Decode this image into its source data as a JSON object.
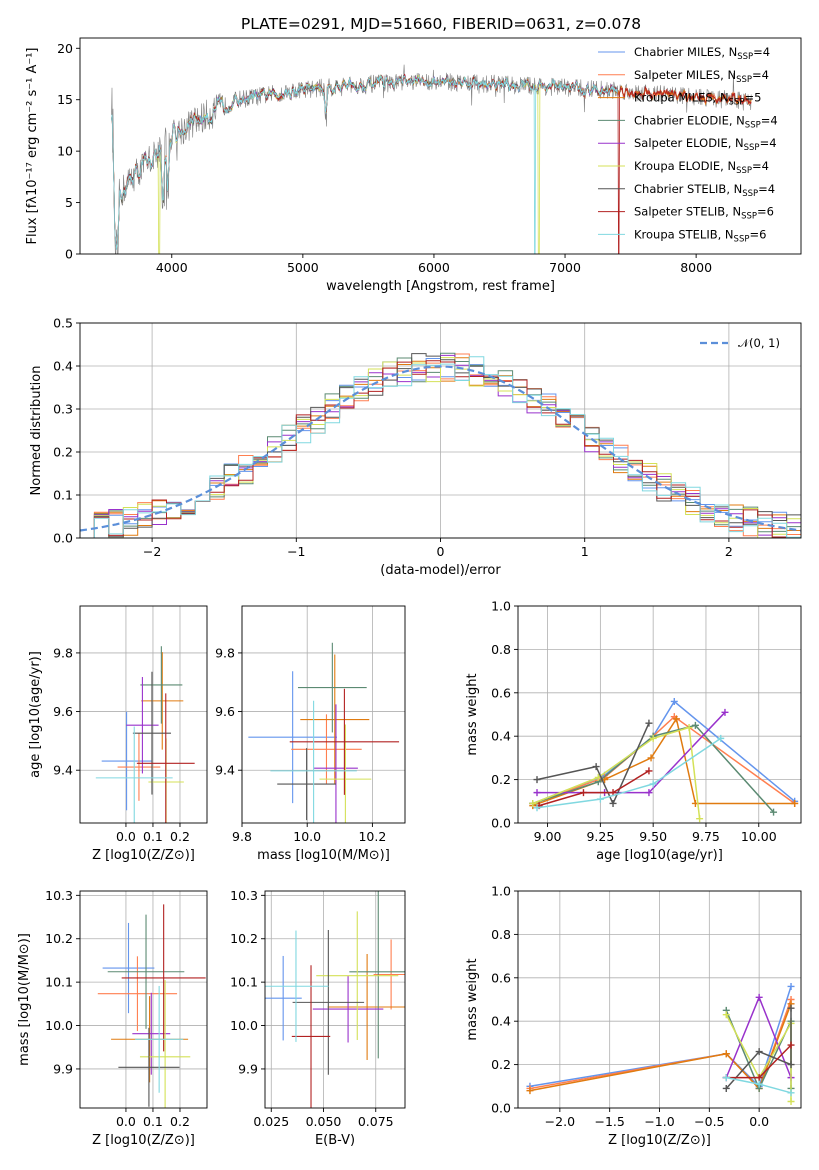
{
  "title": "PLATE=0291, MJD=51660, FIBERID=0631, z=0.078",
  "colors": {
    "Chabrier MILES": "#6495ed",
    "Salpeter MILES": "#ff7f50",
    "Kroupa MILES": "#e07b10",
    "Chabrier ELODIE": "#5b8a72",
    "Salpeter ELODIE": "#9932cc",
    "Kroupa ELODIE": "#d4e157",
    "Chabrier STELIB": "#555555",
    "Salpeter STELIB": "#b22222",
    "Kroupa STELIB": "#80d8e0"
  },
  "chart_data": [
    {
      "id": "spectrum",
      "type": "line",
      "xlabel": "wavelength [Angstrom, rest frame]",
      "ylabel": "Flux [fλ10⁻¹⁷ erg cm⁻² s⁻¹ A⁻¹]",
      "xlim": [
        3300,
        8800
      ],
      "ylim": [
        0,
        21
      ],
      "xticks": [
        "4000",
        "5000",
        "6000",
        "7000",
        "8000"
      ],
      "yticks": [
        "0",
        "5",
        "10",
        "15",
        "20"
      ],
      "legend": [
        "Chabrier MILES, N",
        "Salpeter MILES, N",
        "Kroupa MILES, N",
        "Chabrier ELODIE, N",
        "Salpeter ELODIE, N",
        "Kroupa ELODIE, N",
        "Chabrier STELIB, N",
        "Salpeter STELIB, N",
        "Kroupa STELIB, N"
      ],
      "legend_sub": [
        "SSP",
        "SSP",
        "SSP",
        "SSP",
        "SSP",
        "SSP",
        "SSP",
        "SSP",
        "SSP"
      ],
      "legend_n": [
        "=4",
        "=4",
        "=5",
        "=4",
        "=4",
        "=4",
        "=4",
        "=6",
        "=6"
      ],
      "legend_position": "right",
      "data_wavelength_range": [
        3540,
        8420
      ],
      "continuum_points": [
        [
          3560,
          5
        ],
        [
          3700,
          7.5
        ],
        [
          3900,
          10
        ],
        [
          4000,
          11.5
        ],
        [
          4200,
          13
        ],
        [
          4500,
          15
        ],
        [
          5000,
          16
        ],
        [
          5500,
          16.5
        ],
        [
          6000,
          16.8
        ],
        [
          6500,
          16.5
        ],
        [
          7000,
          16.2
        ],
        [
          7500,
          15.8
        ],
        [
          8000,
          15.3
        ],
        [
          8400,
          14.8
        ]
      ]
    },
    {
      "id": "residuals",
      "type": "line",
      "xlabel": "(data-model)/error",
      "ylabel": "Normed distribution",
      "xlim": [
        -2.5,
        2.5
      ],
      "ylim": [
        0,
        0.5
      ],
      "xticks": [
        "−2",
        "−1",
        "0",
        "1",
        "2"
      ],
      "yticks": [
        "0.0",
        "0.1",
        "0.2",
        "0.3",
        "0.4",
        "0.5"
      ],
      "legend": [
        "𝒩(0, 1)"
      ],
      "legend_position": "top-right",
      "reference": {
        "name": "𝒩(0, 1)",
        "mean": 0,
        "sigma": 1
      }
    },
    {
      "id": "age_vs_Z",
      "type": "scatter",
      "xlabel": "Z [log10(Z/Z⊙)]",
      "ylabel": "age  [log10(age/yr)]",
      "xlim": [
        -0.17,
        0.3
      ],
      "ylim": [
        9.22,
        9.96
      ],
      "xticks": [
        "0.0",
        "0.1",
        "0.2"
      ],
      "yticks": [
        "9.4",
        "9.6",
        "9.8"
      ]
    },
    {
      "id": "age_vs_mass",
      "type": "scatter",
      "xlabel": "mass [log10(M/M⊙)]",
      "ylabel": "",
      "xlim": [
        9.8,
        10.3
      ],
      "ylim": [
        9.22,
        9.96
      ],
      "xticks": [
        "9.8",
        "10.0",
        "10.2"
      ],
      "yticks": [
        "9.4",
        "9.6",
        "9.8"
      ]
    },
    {
      "id": "weight_vs_age",
      "type": "line",
      "xlabel": "age  [log10(age/yr)]",
      "ylabel": "mass weight",
      "xlim": [
        8.86,
        10.2
      ],
      "ylim": [
        0,
        1.0
      ],
      "xticks": [
        "9.00",
        "9.25",
        "9.50",
        "9.75",
        "10.00"
      ],
      "yticks": [
        "0.0",
        "0.2",
        "0.4",
        "0.6",
        "0.8",
        "1.0"
      ],
      "series": [
        {
          "name": "Chabrier MILES",
          "x": [
            8.93,
            9.27,
            9.5,
            9.6,
            10.17
          ],
          "y": [
            0.09,
            0.22,
            0.4,
            0.56,
            0.1
          ]
        },
        {
          "name": "Salpeter MILES",
          "x": [
            8.93,
            9.27,
            9.5,
            9.6,
            10.17
          ],
          "y": [
            0.09,
            0.21,
            0.4,
            0.49,
            0.09
          ]
        },
        {
          "name": "Kroupa MILES",
          "x": [
            8.93,
            9.27,
            9.49,
            9.61,
            9.7,
            10.17
          ],
          "y": [
            0.08,
            0.2,
            0.3,
            0.48,
            0.09,
            0.09
          ]
        },
        {
          "name": "Chabrier ELODIE",
          "x": [
            8.93,
            9.24,
            9.5,
            9.7,
            10.07
          ],
          "y": [
            0.09,
            0.19,
            0.4,
            0.45,
            0.05
          ]
        },
        {
          "name": "Salpeter ELODIE",
          "x": [
            8.95,
            9.27,
            9.48,
            9.84
          ],
          "y": [
            0.14,
            0.14,
            0.14,
            0.51
          ]
        },
        {
          "name": "Kroupa ELODIE",
          "x": [
            8.93,
            9.24,
            9.5,
            9.67,
            9.72
          ],
          "y": [
            0.09,
            0.21,
            0.39,
            0.44,
            0.02
          ]
        },
        {
          "name": "Chabrier STELIB",
          "x": [
            8.95,
            9.23,
            9.31,
            9.48
          ],
          "y": [
            0.2,
            0.26,
            0.09,
            0.46
          ]
        },
        {
          "name": "Salpeter STELIB",
          "x": [
            8.96,
            9.17,
            9.31,
            9.48
          ],
          "y": [
            0.08,
            0.14,
            0.14,
            0.24
          ]
        },
        {
          "name": "Kroupa STELIB",
          "x": [
            8.95,
            9.25,
            9.5,
            9.82
          ],
          "y": [
            0.07,
            0.11,
            0.18,
            0.39
          ]
        }
      ]
    },
    {
      "id": "mass_vs_Z",
      "type": "scatter",
      "xlabel": "Z [log10(Z/Z⊙)]",
      "ylabel": "mass [log10(M/M⊙)]",
      "xlim": [
        -0.17,
        0.3
      ],
      "ylim": [
        9.81,
        10.31
      ],
      "xticks": [
        "0.0",
        "0.1",
        "0.2"
      ],
      "yticks": [
        "9.9",
        "10.0",
        "10.1",
        "10.2",
        "10.3"
      ]
    },
    {
      "id": "mass_vs_EBV",
      "type": "scatter",
      "xlabel": "E(B-V)",
      "ylabel": "",
      "xlim": [
        0.022,
        0.089
      ],
      "ylim": [
        9.81,
        10.31
      ],
      "xticks": [
        "0.025",
        "0.050",
        "0.075"
      ],
      "yticks": [
        "9.9",
        "10.0",
        "10.1",
        "10.2",
        "10.3"
      ]
    },
    {
      "id": "weight_vs_Z",
      "type": "line",
      "xlabel": "Z [log10(Z/Z⊙)]",
      "ylabel": "mass weight",
      "xlim": [
        -2.42,
        0.42
      ],
      "ylim": [
        0,
        1.0
      ],
      "xticks": [
        "−2.0",
        "−1.5",
        "−1.0",
        "−0.5",
        "0.0"
      ],
      "yticks": [
        "0.0",
        "0.2",
        "0.4",
        "0.6",
        "0.8",
        "1.0"
      ],
      "series": [
        {
          "name": "Chabrier MILES",
          "x": [
            -2.3,
            -0.33,
            0.0,
            0.32
          ],
          "y": [
            0.1,
            0.25,
            0.1,
            0.56
          ]
        },
        {
          "name": "Salpeter MILES",
          "x": [
            -2.3,
            -0.33,
            0.0,
            0.32
          ],
          "y": [
            0.09,
            0.25,
            0.09,
            0.5
          ]
        },
        {
          "name": "Kroupa MILES",
          "x": [
            -2.3,
            -0.33,
            0.0,
            0.32
          ],
          "y": [
            0.08,
            0.25,
            0.09,
            0.48
          ]
        },
        {
          "name": "Chabrier ELODIE",
          "x": [
            -0.33,
            0.0,
            0.32,
            0.32
          ],
          "y": [
            0.45,
            0.09,
            0.4,
            0.09
          ]
        },
        {
          "name": "Salpeter ELODIE",
          "x": [
            -0.33,
            0.0,
            0.32
          ],
          "y": [
            0.14,
            0.51,
            0.14
          ]
        },
        {
          "name": "Kroupa ELODIE",
          "x": [
            -0.33,
            0.0,
            0.32,
            0.32
          ],
          "y": [
            0.43,
            0.14,
            0.39,
            0.03
          ]
        },
        {
          "name": "Chabrier STELIB",
          "x": [
            -0.33,
            0.0,
            0.32,
            0.32
          ],
          "y": [
            0.09,
            0.26,
            0.2,
            0.46
          ]
        },
        {
          "name": "Salpeter STELIB",
          "x": [
            -0.33,
            0.0,
            0.32
          ],
          "y": [
            0.14,
            0.14,
            0.29
          ]
        },
        {
          "name": "Kroupa STELIB",
          "x": [
            -0.33,
            0.0,
            0.32
          ],
          "y": [
            0.14,
            0.11,
            0.07
          ]
        }
      ]
    }
  ]
}
